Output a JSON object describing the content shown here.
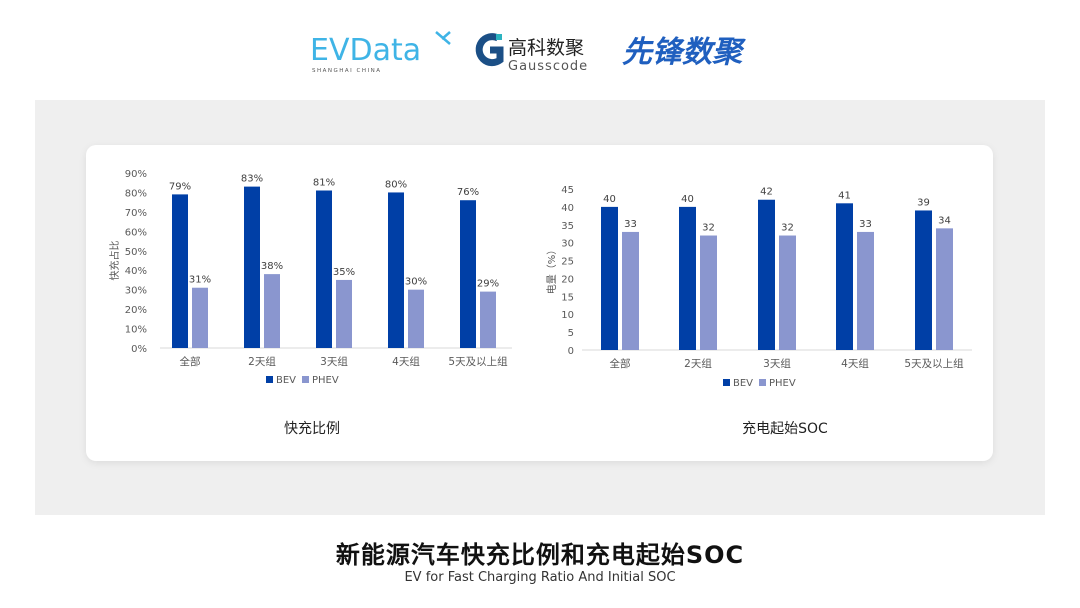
{
  "logos": {
    "evdata": {
      "text": "EVData",
      "subtext": "SHANGHAI CHINA"
    },
    "gausscode": {
      "text": "高科数聚",
      "subtext": "Gausscode"
    },
    "xianfeng": {
      "text": "先锋数聚"
    }
  },
  "colors": {
    "bev": "#003fa6",
    "phev": "#8a96cf",
    "panel": "#efefef",
    "axis_text": "#595959"
  },
  "footer": {
    "title": "新能源汽车快充比例和充电起始SOC",
    "subtitle": "EV for Fast Charging Ratio And Initial SOC"
  },
  "chart_data": [
    {
      "type": "bar",
      "title": "快充比例",
      "ylabel": "快充占比",
      "xlabel": "",
      "ylim": [
        0,
        90
      ],
      "yticks": [
        "0%",
        "10%",
        "20%",
        "30%",
        "40%",
        "50%",
        "60%",
        "70%",
        "80%",
        "90%"
      ],
      "categories": [
        "全部",
        "2天组",
        "3天组",
        "4天组",
        "5天及以上组"
      ],
      "series": [
        {
          "name": "BEV",
          "values": [
            79,
            83,
            81,
            80,
            76
          ],
          "labels": [
            "79%",
            "83%",
            "81%",
            "80%",
            "76%"
          ]
        },
        {
          "name": "PHEV",
          "values": [
            31,
            38,
            35,
            30,
            29
          ],
          "labels": [
            "31%",
            "38%",
            "35%",
            "30%",
            "29%"
          ]
        }
      ],
      "legend": "bottom",
      "grid": false
    },
    {
      "type": "bar",
      "title": "充电起始SOC",
      "ylabel": "电量（%）",
      "xlabel": "",
      "ylim": [
        0,
        45
      ],
      "yticks": [
        "0",
        "5",
        "10",
        "15",
        "20",
        "25",
        "30",
        "35",
        "40",
        "45"
      ],
      "categories": [
        "全部",
        "2天组",
        "3天组",
        "4天组",
        "5天及以上组"
      ],
      "series": [
        {
          "name": "BEV",
          "values": [
            40,
            40,
            42,
            41,
            39
          ],
          "labels": [
            "40",
            "40",
            "42",
            "41",
            "39"
          ]
        },
        {
          "name": "PHEV",
          "values": [
            33,
            32,
            32,
            33,
            34
          ],
          "labels": [
            "33",
            "32",
            "32",
            "33",
            "34"
          ]
        }
      ],
      "legend": "bottom",
      "grid": false
    }
  ]
}
